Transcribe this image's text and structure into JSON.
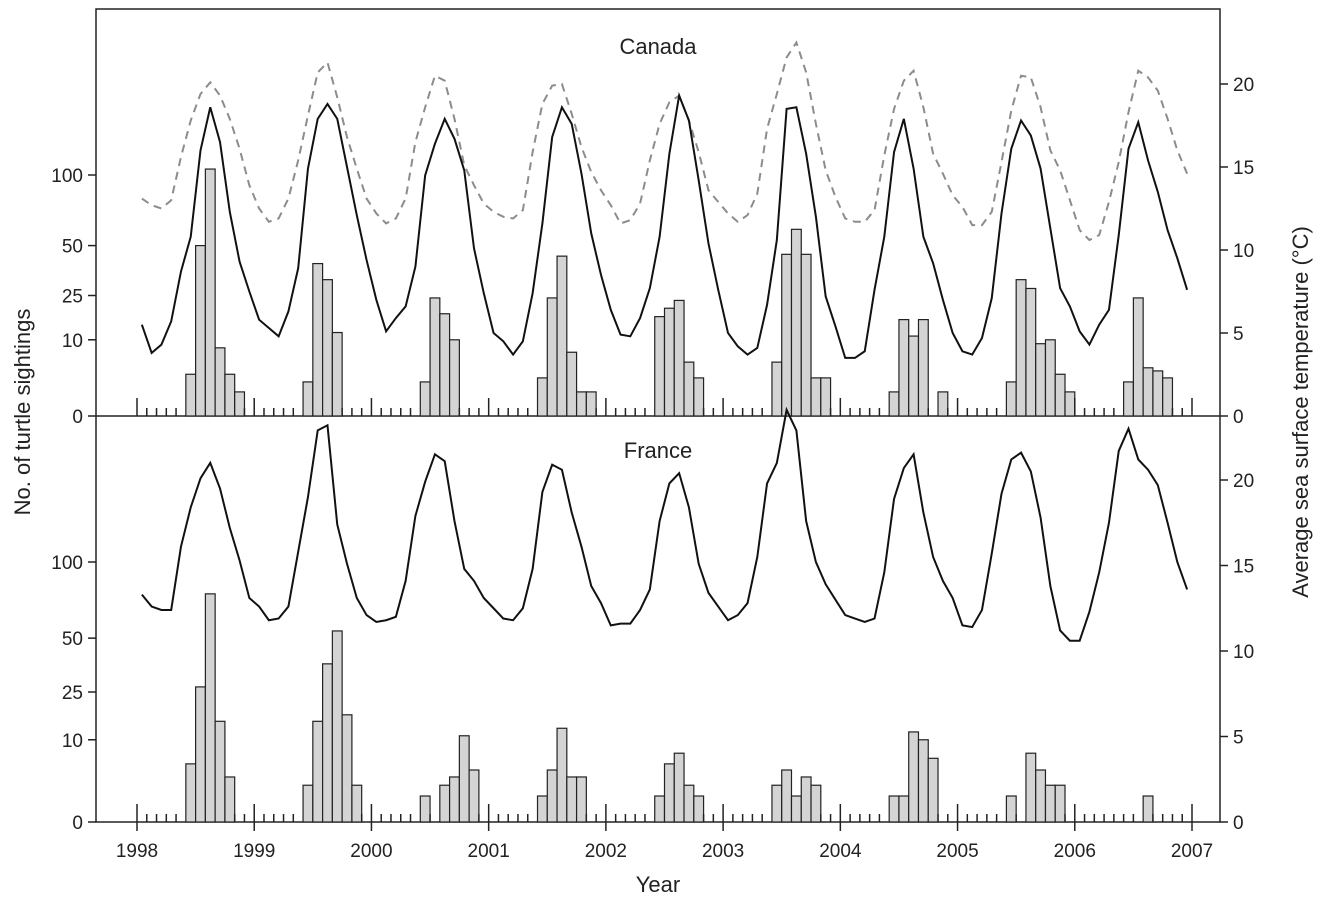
{
  "chart_data": {
    "type": "bar",
    "xlabel": "Year",
    "ylabel_left": "No. of turtle sightings",
    "ylabel_right": "Average sea surface temperature (°C)",
    "xlim": [
      1998,
      2007
    ],
    "x_ticks": [
      "1998",
      "1999",
      "2000",
      "2001",
      "2002",
      "2003",
      "2004",
      "2005",
      "2006",
      "2007"
    ],
    "left_scale_note": "square-root-like scale",
    "left_ticks": [
      0,
      10,
      25,
      50,
      100
    ],
    "right_ticks": [
      0,
      5,
      10,
      15,
      20
    ],
    "right_ylim": [
      0,
      25
    ],
    "colors": {
      "bar_fill": "#d4d4d4",
      "line": "#111111",
      "dashed": "#8c8c8c"
    },
    "panels": [
      {
        "title": "Canada",
        "sightings": [
          0,
          0,
          0,
          0,
          0,
          3,
          50,
          105,
          8,
          3,
          1,
          0,
          0,
          0,
          0,
          0,
          0,
          2,
          40,
          32,
          12,
          0,
          0,
          0,
          0,
          0,
          0,
          0,
          0,
          2,
          24,
          18,
          10,
          0,
          0,
          0,
          0,
          0,
          0,
          0,
          0,
          2.5,
          24,
          44,
          7,
          1,
          1,
          0,
          0,
          0,
          0,
          0,
          0,
          17,
          20,
          23,
          5,
          2.5,
          0,
          0,
          0,
          0,
          0,
          0,
          0,
          5,
          45,
          60,
          45,
          2.5,
          2.5,
          0,
          0,
          0,
          0,
          0,
          0,
          1,
          16,
          11,
          16,
          0,
          1,
          0,
          0,
          0,
          0,
          0,
          0,
          2,
          32,
          28,
          9,
          10,
          3,
          1,
          0,
          0,
          0,
          0,
          0,
          2,
          24,
          4,
          3.5,
          2.5,
          0,
          0
        ],
        "sst_solid": [
          5.5,
          3.8,
          4.3,
          5.7,
          8.7,
          10.8,
          16,
          18.6,
          16.5,
          12.3,
          9.3,
          7.5,
          5.8,
          5.3,
          4.8,
          6.3,
          8.9,
          14.9,
          17.9,
          18.8,
          17.9,
          15,
          12.1,
          9.4,
          7,
          5.1,
          5.9,
          6.6,
          9,
          14.5,
          16.4,
          17.9,
          16.7,
          14.8,
          10.1,
          7.4,
          5,
          4.5,
          3.7,
          4.5,
          7.4,
          11.6,
          16.8,
          18.6,
          17.6,
          14.6,
          11,
          8.5,
          6.4,
          4.9,
          4.8,
          5.9,
          7.7,
          10.8,
          15.8,
          19.3,
          17.8,
          14.2,
          10.4,
          7.6,
          5,
          4.2,
          3.7,
          4.1,
          6.7,
          10.6,
          18.5,
          18.6,
          15.8,
          12,
          7.2,
          5.4,
          3.5,
          3.5,
          3.9,
          7.6,
          10.8,
          15.9,
          17.9,
          14.9,
          10.8,
          9.2,
          7,
          5,
          3.9,
          3.7,
          4.7,
          7.1,
          12.2,
          16.1,
          17.8,
          16.9,
          14.9,
          11.3,
          7.7,
          6.6,
          5.1,
          4.3,
          5.5,
          6.4,
          10.9,
          16.1,
          17.7,
          15.4,
          13.5,
          11.2,
          9.5,
          7.6
        ],
        "sst_dashed": [
          13.1,
          12.7,
          12.5,
          13,
          15.6,
          17.8,
          19.4,
          20.1,
          19.3,
          17.9,
          16.1,
          13.9,
          12.5,
          11.7,
          11.9,
          13.1,
          15.4,
          18.1,
          20.7,
          21.3,
          19.2,
          16.8,
          14.9,
          13.1,
          12.2,
          11.6,
          11.9,
          13.1,
          16.5,
          18.6,
          20.5,
          20.2,
          17.9,
          15.1,
          13.9,
          12.8,
          12.3,
          12,
          11.9,
          12.4,
          15.9,
          18.8,
          19.9,
          20,
          18.2,
          16.2,
          14.7,
          13.6,
          12.7,
          11.6,
          11.8,
          12.8,
          15.4,
          17.6,
          18.9,
          19.3,
          17.8,
          15.9,
          13.6,
          12.9,
          12.2,
          11.7,
          12.1,
          13.4,
          17.3,
          19.4,
          21.6,
          22.5,
          20.7,
          17.6,
          14.8,
          13.2,
          11.9,
          11.7,
          11.7,
          12.4,
          15.7,
          18.5,
          20.2,
          20.8,
          18.6,
          15.8,
          14.6,
          13.3,
          12.6,
          11.5,
          11.5,
          12.3,
          15.3,
          18.4,
          20.5,
          20.4,
          18.6,
          16,
          14.8,
          13,
          11.2,
          10.6,
          10.9,
          12.9,
          15.3,
          18.3,
          20.8,
          20.4,
          19.6,
          17.9,
          16,
          14.6
        ]
      },
      {
        "title": "France",
        "sightings": [
          0,
          0,
          0,
          0,
          0,
          5,
          27,
          77,
          15,
          3,
          0,
          0,
          0,
          0,
          0,
          0,
          0,
          2,
          15,
          37,
          54,
          17,
          2,
          0,
          0,
          0,
          0,
          0,
          0,
          1,
          0,
          2,
          3,
          11,
          4,
          0,
          0,
          0,
          0,
          0,
          0,
          1,
          4,
          13,
          3,
          3,
          0,
          0,
          0,
          0,
          0,
          0,
          0,
          1,
          5,
          7,
          2,
          1,
          0,
          0,
          0,
          0,
          0,
          0,
          0,
          2,
          4,
          1,
          3,
          2,
          0,
          0,
          0,
          0,
          0,
          0,
          0,
          1,
          1,
          12,
          10,
          6,
          0,
          0,
          0,
          0,
          0,
          0,
          0,
          1,
          0,
          7,
          4,
          2,
          2,
          0,
          0,
          0,
          0,
          0,
          0,
          0,
          0,
          1,
          0,
          0,
          0,
          0
        ],
        "sst_solid": [
          13.3,
          12.6,
          12.4,
          12.4,
          16.1,
          18.4,
          20.1,
          21,
          19.5,
          17.2,
          15.3,
          13.1,
          12.6,
          11.8,
          11.9,
          12.6,
          15.8,
          19,
          22.9,
          23.2,
          17.4,
          15.1,
          13.1,
          12.1,
          11.7,
          11.8,
          12,
          14.1,
          17.9,
          19.9,
          21.5,
          21.1,
          17.6,
          14.8,
          14.1,
          13.1,
          12.5,
          11.9,
          11.8,
          12.5,
          14.8,
          19.3,
          20.9,
          20.6,
          18.1,
          16.1,
          13.8,
          12.8,
          11.5,
          11.6,
          11.6,
          12.4,
          13.6,
          17.6,
          19.8,
          20.4,
          18.4,
          15.1,
          13.4,
          12.6,
          11.8,
          12.1,
          12.8,
          15.5,
          19.8,
          21,
          24.1,
          22.9,
          17.6,
          15.2,
          13.9,
          13,
          12.1,
          11.9,
          11.7,
          11.9,
          14.6,
          18.9,
          20.7,
          21.5,
          18.1,
          15.5,
          14.1,
          13.1,
          11.5,
          11.4,
          12.4,
          15.7,
          19.2,
          21.2,
          21.6,
          20.5,
          17.8,
          13.8,
          11.2,
          10.6,
          10.6,
          12.3,
          14.6,
          17.5,
          21.7,
          23,
          21.2,
          20.6,
          19.7,
          17.5,
          15.2,
          13.6
        ]
      }
    ]
  }
}
